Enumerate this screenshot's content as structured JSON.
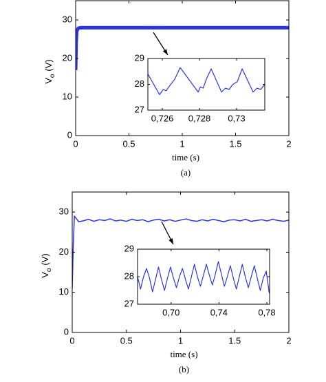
{
  "chart_data": [
    {
      "type": "line",
      "xlim": [
        0,
        2
      ],
      "ylim": [
        0,
        35
      ],
      "xticks": [
        0,
        0.5,
        1,
        1.5,
        2
      ],
      "yticks": [
        0,
        10,
        20,
        30
      ],
      "xlabel": "time (s)",
      "ylabel_parts": [
        "V",
        "o",
        "(V)"
      ],
      "caption": "(a)",
      "color": "#2a35e0",
      "x": [
        0,
        0.005,
        0.01,
        0.02,
        0.03,
        0.05,
        0.1,
        0.5,
        1,
        1.5,
        2
      ],
      "values": [
        17,
        24,
        27,
        27.7,
        27.9,
        28,
        28,
        28,
        28,
        28,
        28
      ]
    },
    {
      "type": "line",
      "xlim": [
        0.72522,
        0.73152
      ],
      "ylim": [
        27,
        29
      ],
      "xticks": [
        {
          "value": 0.726,
          "label": "0,726"
        },
        {
          "value": 0.728,
          "label": "0,728"
        },
        {
          "value": 0.73,
          "label": "0,73"
        }
      ],
      "yticks": [
        27,
        28,
        29
      ],
      "color": "#2a35e0",
      "x": [
        0.72522,
        0.72585,
        0.72605,
        0.7262,
        0.72645,
        0.72667,
        0.72696,
        0.72793,
        0.72805,
        0.7282,
        0.72837,
        0.72863,
        0.72919,
        0.7294,
        0.7296,
        0.7298,
        0.73004,
        0.7303,
        0.73089,
        0.7311,
        0.7313,
        0.73152
      ],
      "values": [
        28.4,
        27.6,
        27.8,
        27.75,
        28.0,
        28.2,
        28.65,
        27.7,
        27.9,
        27.85,
        28.2,
        28.6,
        27.7,
        27.85,
        27.8,
        28.0,
        28.1,
        28.6,
        27.7,
        27.85,
        27.8,
        28.0
      ]
    },
    {
      "type": "line",
      "xlim": [
        0,
        2
      ],
      "ylim": [
        0,
        35
      ],
      "xticks": [
        0,
        0.5,
        1,
        1.5,
        2
      ],
      "yticks": [
        0,
        10,
        20,
        30
      ],
      "xlabel": "time (s)",
      "ylabel_parts": [
        "V",
        "o",
        "(V)"
      ],
      "caption": "(b)",
      "color": "#2a35e0",
      "x": [
        0,
        0.01,
        0.02,
        0.04,
        0.06,
        0.1,
        0.15,
        0.2,
        0.25,
        0.3,
        0.35,
        0.4,
        0.45,
        0.5,
        0.55,
        0.6,
        0.65,
        0.7,
        0.75,
        0.8,
        0.85,
        0.9,
        0.95,
        1.0,
        1.05,
        1.1,
        1.15,
        1.2,
        1.25,
        1.3,
        1.35,
        1.4,
        1.45,
        1.5,
        1.55,
        1.6,
        1.65,
        1.7,
        1.75,
        1.8,
        1.85,
        1.9,
        1.95,
        2.0
      ],
      "values": [
        11,
        22,
        29,
        28.3,
        27.6,
        27.8,
        28.2,
        27.7,
        28.1,
        27.9,
        28.3,
        27.8,
        28.0,
        27.7,
        28.2,
        27.9,
        28.1,
        27.6,
        28.0,
        28.2,
        27.8,
        28.1,
        27.7,
        28.0,
        28.3,
        27.9,
        27.7,
        28.1,
        27.8,
        28.2,
        27.9,
        27.6,
        28.0,
        28.1,
        27.8,
        28.2,
        27.7,
        27.9,
        28.1,
        27.8,
        28.2,
        27.9,
        27.7,
        28.0
      ]
    },
    {
      "type": "line",
      "xlim": [
        0.672,
        0.7823
      ],
      "ylim": [
        27,
        29
      ],
      "xticks": [
        {
          "value": 0.7,
          "label": "0,70"
        },
        {
          "value": 0.74,
          "label": "0,74"
        },
        {
          "value": 0.78,
          "label": "0,78"
        }
      ],
      "yticks": [
        27,
        28,
        29
      ],
      "color": "#2a35e0",
      "x": [
        0.672,
        0.6745,
        0.677,
        0.6795,
        0.682,
        0.6845,
        0.687,
        0.6895,
        0.692,
        0.6945,
        0.697,
        0.6995,
        0.702,
        0.7045,
        0.707,
        0.7095,
        0.712,
        0.7145,
        0.717,
        0.7195,
        0.722,
        0.7245,
        0.727,
        0.7295,
        0.732,
        0.7345,
        0.737,
        0.7395,
        0.742,
        0.7445,
        0.747,
        0.7495,
        0.752,
        0.7545,
        0.757,
        0.7595,
        0.762,
        0.7645,
        0.767,
        0.7695,
        0.772,
        0.7745,
        0.777,
        0.7795,
        0.782
      ],
      "values": [
        28.0,
        27.55,
        28.0,
        28.3,
        27.95,
        27.45,
        27.9,
        28.35,
        27.9,
        27.5,
        27.95,
        28.35,
        27.95,
        27.6,
        28.0,
        28.3,
        27.9,
        27.55,
        28.0,
        28.45,
        28.0,
        27.65,
        28.05,
        28.45,
        28.05,
        27.7,
        28.1,
        28.55,
        28.1,
        27.65,
        28.0,
        28.4,
        27.95,
        27.55,
        28.0,
        28.45,
        28.0,
        27.6,
        28.0,
        28.4,
        27.95,
        27.5,
        27.95,
        28.2,
        27.4
      ]
    }
  ]
}
